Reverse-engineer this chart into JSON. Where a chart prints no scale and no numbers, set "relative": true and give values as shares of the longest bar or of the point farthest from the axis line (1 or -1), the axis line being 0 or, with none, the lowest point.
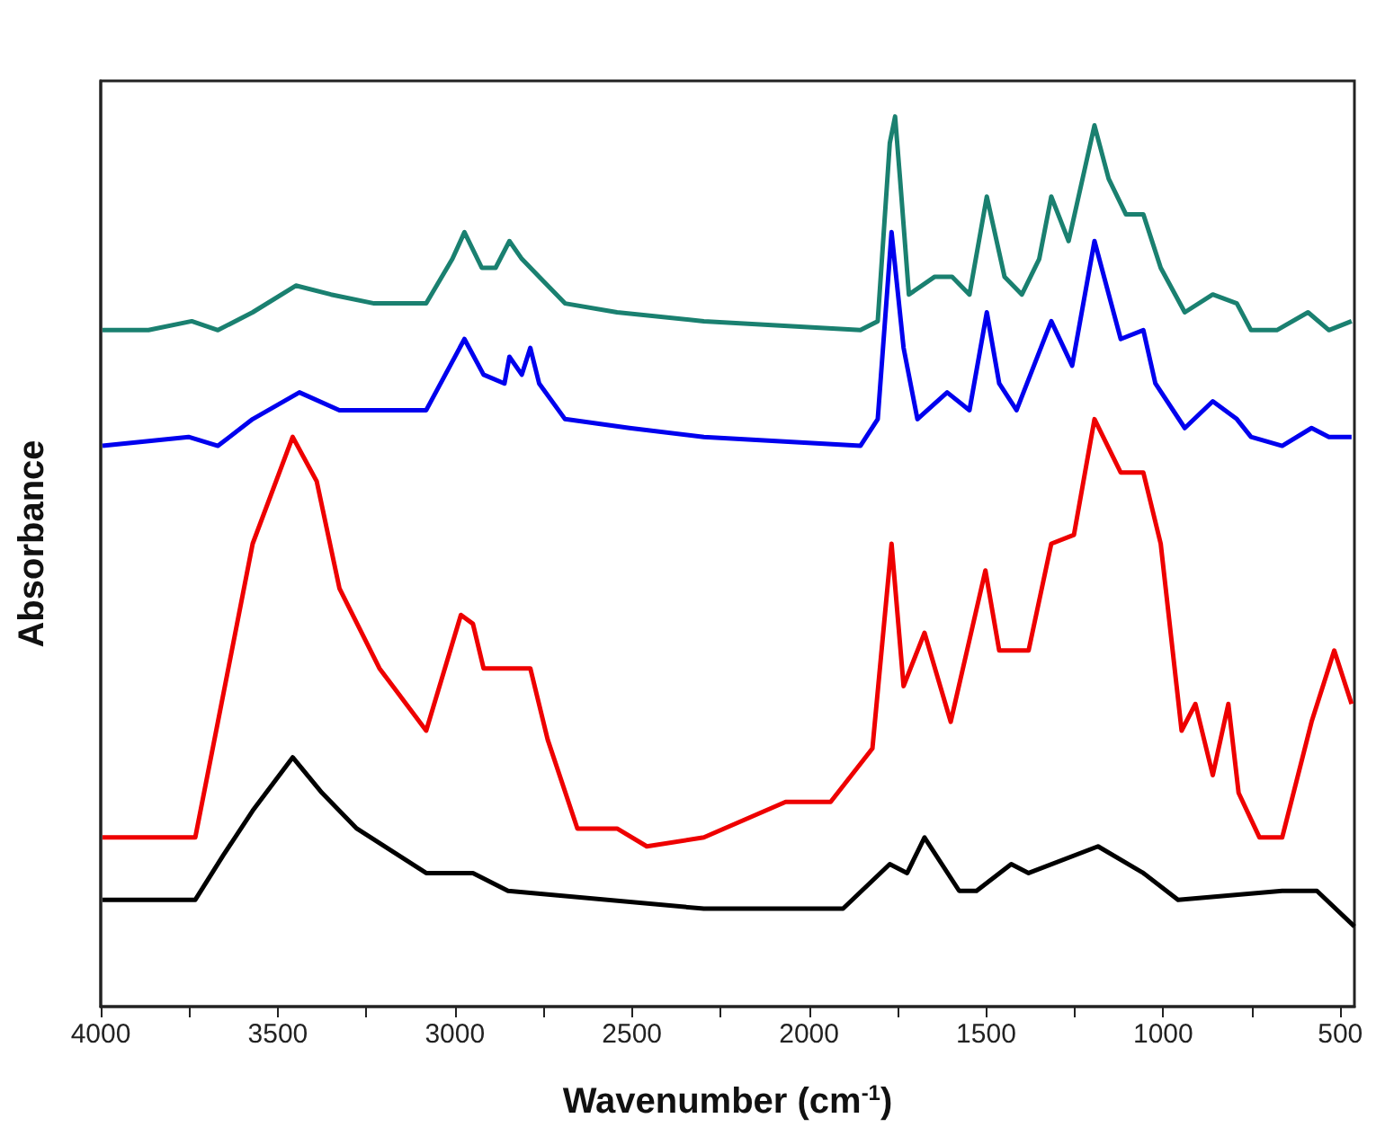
{
  "chart_data": {
    "type": "line",
    "relative": true,
    "xlabel": "Wavenumber (cm$^{-1}$)",
    "ylabel": "Absorbance",
    "marker": "none",
    "xlim": [
      4000,
      460
    ],
    "xticks": [
      4000,
      {
        "value": 3750,
        "label": null
      },
      3500,
      {
        "value": 3250,
        "label": null
      },
      3000,
      {
        "value": 2750,
        "label": null
      },
      2500,
      {
        "value": 2250,
        "label": null
      },
      2000,
      {
        "value": 1750,
        "label": null
      },
      1500,
      {
        "value": 1250,
        "label": null
      },
      1000,
      {
        "value": 750,
        "label": null
      },
      500
    ],
    "series": [
      {
        "color": "#1a8070",
        "x": [
          3995,
          3865,
          3743,
          3669,
          3571,
          3449,
          3350,
          3228,
          3081,
          3007,
          2973,
          2924,
          2885,
          2846,
          2811,
          2762,
          2689,
          2542,
          2297,
          1855,
          1806,
          1772,
          1757,
          1743,
          1718,
          1645,
          1596,
          1547,
          1498,
          1448,
          1399,
          1350,
          1316,
          1267,
          1194,
          1154,
          1105,
          1056,
          1007,
          939,
          860,
          792,
          752,
          679,
          591,
          532,
          468
        ],
        "values": [
          0.76,
          0.76,
          0.77,
          0.76,
          0.78,
          0.81,
          0.8,
          0.79,
          0.79,
          0.84,
          0.87,
          0.83,
          0.83,
          0.86,
          0.84,
          0.82,
          0.79,
          0.78,
          0.77,
          0.76,
          0.77,
          0.97,
          1.0,
          0.93,
          0.8,
          0.82,
          0.82,
          0.8,
          0.91,
          0.82,
          0.8,
          0.84,
          0.91,
          0.86,
          0.99,
          0.93,
          0.89,
          0.89,
          0.83,
          0.78,
          0.8,
          0.79,
          0.76,
          0.76,
          0.78,
          0.76,
          0.77
        ]
      },
      {
        "color": "#0000ee",
        "x": [
          3995,
          3752,
          3669,
          3571,
          3439,
          3326,
          3081,
          2973,
          2919,
          2860,
          2846,
          2811,
          2787,
          2762,
          2689,
          2507,
          2297,
          1855,
          1806,
          1767,
          1733,
          1694,
          1610,
          1547,
          1498,
          1463,
          1414,
          1316,
          1257,
          1194,
          1120,
          1056,
          1022,
          939,
          860,
          792,
          752,
          664,
          581,
          532,
          468
        ],
        "values": [
          0.63,
          0.64,
          0.63,
          0.66,
          0.69,
          0.67,
          0.67,
          0.75,
          0.71,
          0.7,
          0.73,
          0.71,
          0.74,
          0.7,
          0.66,
          0.65,
          0.64,
          0.63,
          0.66,
          0.87,
          0.74,
          0.66,
          0.69,
          0.67,
          0.78,
          0.7,
          0.67,
          0.77,
          0.72,
          0.86,
          0.75,
          0.76,
          0.7,
          0.65,
          0.68,
          0.66,
          0.64,
          0.63,
          0.65,
          0.64,
          0.64
        ]
      },
      {
        "color": "#ee0000",
        "x": [
          3995,
          3733,
          3669,
          3571,
          3458,
          3390,
          3326,
          3213,
          3081,
          2983,
          2949,
          2919,
          2850,
          2787,
          2738,
          2654,
          2542,
          2458,
          2297,
          2066,
          1939,
          1821,
          1767,
          1733,
          1674,
          1600,
          1502,
          1463,
          1380,
          1316,
          1252,
          1194,
          1120,
          1056,
          1007,
          948,
          909,
          860,
          816,
          787,
          728,
          664,
          581,
          517,
          468
        ],
        "values": [
          0.19,
          0.19,
          0.32,
          0.52,
          0.64,
          0.59,
          0.47,
          0.38,
          0.31,
          0.44,
          0.43,
          0.38,
          0.38,
          0.38,
          0.3,
          0.2,
          0.2,
          0.18,
          0.19,
          0.23,
          0.23,
          0.29,
          0.52,
          0.36,
          0.42,
          0.32,
          0.49,
          0.4,
          0.4,
          0.52,
          0.53,
          0.66,
          0.6,
          0.6,
          0.52,
          0.31,
          0.34,
          0.26,
          0.34,
          0.24,
          0.19,
          0.19,
          0.32,
          0.4,
          0.34
        ]
      },
      {
        "color": "#000000",
        "x": [
          3995,
          3733,
          3654,
          3571,
          3458,
          3375,
          3277,
          3081,
          2998,
          2949,
          2850,
          2297,
          1904,
          1772,
          1723,
          1674,
          1576,
          1527,
          1429,
          1380,
          1184,
          1056,
          958,
          664,
          566,
          460
        ],
        "values": [
          0.12,
          0.12,
          0.17,
          0.22,
          0.28,
          0.24,
          0.2,
          0.15,
          0.15,
          0.15,
          0.13,
          0.11,
          0.11,
          0.16,
          0.15,
          0.19,
          0.13,
          0.13,
          0.16,
          0.15,
          0.18,
          0.15,
          0.12,
          0.13,
          0.13,
          0.09
        ]
      }
    ]
  }
}
